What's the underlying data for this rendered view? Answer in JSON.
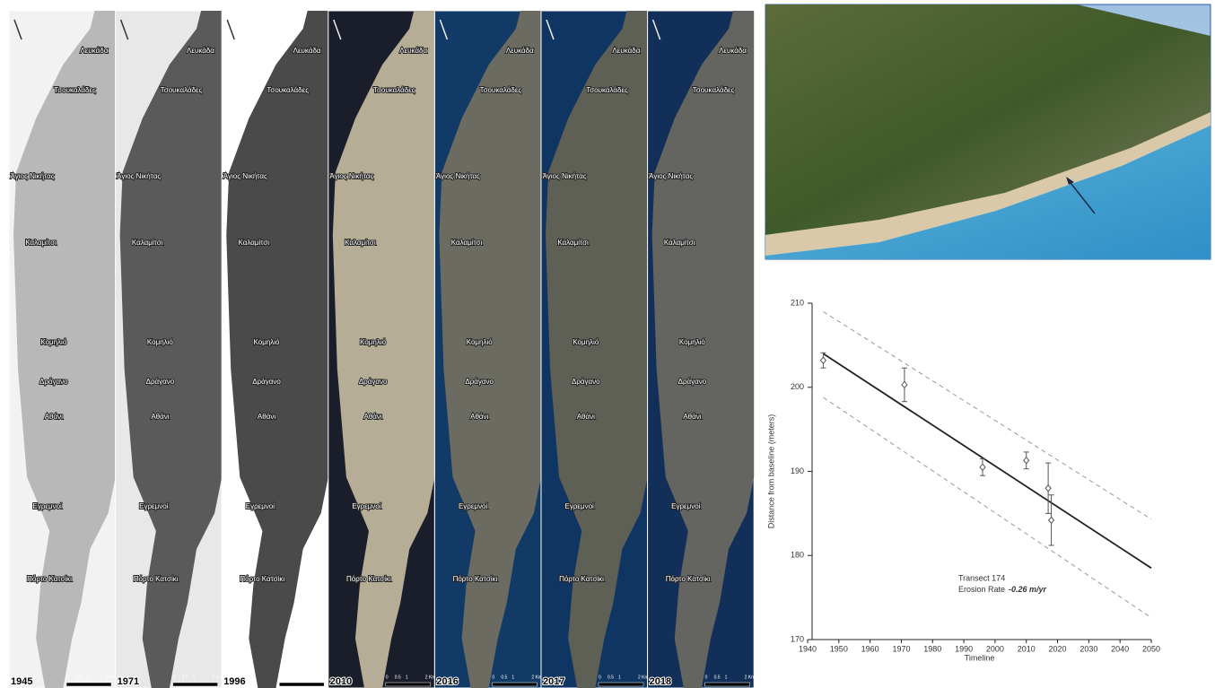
{
  "panels": {
    "years": [
      "1945",
      "1971",
      "1996",
      "2010",
      "2016",
      "2017",
      "2018"
    ],
    "places": [
      "Λευκάδα",
      "Τσουκαλάδες",
      "Άγιος Νικήτας",
      "Καλαμίτσι",
      "Κομηλιό",
      "Δράγανο",
      "Αθάνι",
      "Εγρεμνοί",
      "Πόρτο Κατσίκι"
    ],
    "scale_labels": [
      "0",
      "0.5",
      "1",
      "2 Km"
    ]
  },
  "chart_data": {
    "type": "scatter",
    "x": [
      1945,
      1971,
      1996,
      2010,
      2017,
      2018
    ],
    "series": [
      {
        "color": "#555555",
        "values": [
          203.2,
          200.3,
          190.5,
          191.3,
          188,
          184.2
        ],
        "errors": [
          0.9,
          2,
          1,
          1,
          3,
          3
        ]
      }
    ],
    "lines": [
      {
        "style": "solid",
        "color": "#222222",
        "x": [
          1945,
          2050
        ],
        "values": [
          204,
          178.5
        ]
      },
      {
        "style": "dashed",
        "color": "#999999",
        "x": [
          1945,
          2050
        ],
        "values": [
          209,
          184.3
        ]
      },
      {
        "style": "dashed",
        "color": "#999999",
        "x": [
          1945,
          2050
        ],
        "values": [
          198.8,
          172.6
        ]
      }
    ],
    "xlim": [
      1940,
      2050
    ],
    "ylim": [
      170,
      210
    ],
    "xticks": [
      1940,
      1950,
      1960,
      1970,
      1980,
      1990,
      2000,
      2010,
      2020,
      2030,
      2040,
      2050
    ],
    "yticks": [
      170,
      180,
      190,
      200,
      210
    ],
    "xlabel": "Timeline",
    "ylabel": "Distance from baseline (meters)",
    "annotations": [
      "Transect 174",
      "Erosion Rate",
      "-0.26 m/yr"
    ]
  }
}
